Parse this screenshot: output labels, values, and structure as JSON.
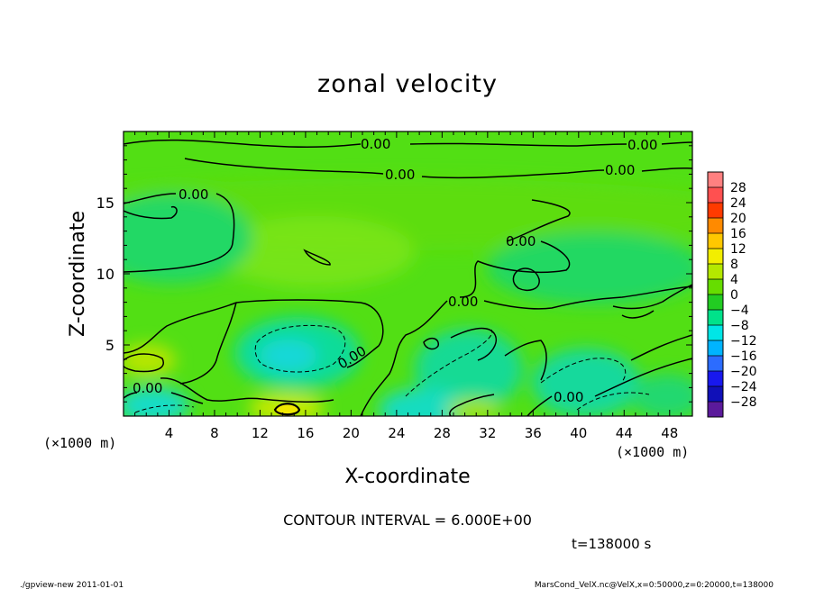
{
  "chart_data": {
    "type": "contour",
    "title": "zonal velocity",
    "xlabel": "X-coordinate",
    "ylabel": "Z-coordinate",
    "x_unit": "(×1000 m)",
    "y_unit": "(×1000 m)",
    "xlim": [
      0,
      50
    ],
    "ylim": [
      0,
      20
    ],
    "x_ticks": [
      "4",
      "8",
      "12",
      "16",
      "20",
      "24",
      "28",
      "32",
      "36",
      "40",
      "44",
      "48"
    ],
    "y_ticks": [
      "5",
      "10",
      "15"
    ],
    "contour_interval_text": "CONTOUR INTERVAL = 6.000E+00",
    "contour_labels": [
      "0.00",
      "0.00",
      "0.00",
      "0.00",
      "0.00",
      "0.00",
      "0.00",
      "0.00",
      "0.00",
      "0.00"
    ],
    "colorbar": {
      "labels": [
        "28",
        "24",
        "20",
        "16",
        "12",
        "8",
        "4",
        "0",
        "−4",
        "−8",
        "−12",
        "−16",
        "−20",
        "−24",
        "−28"
      ],
      "colors": [
        "#ff8080",
        "#ff5050",
        "#ff3a00",
        "#ff8a00",
        "#ffc800",
        "#f2ee00",
        "#b4e800",
        "#66dd00",
        "#22cc22",
        "#00e28a",
        "#00e6e6",
        "#00b4ff",
        "#2c6cff",
        "#1818ee",
        "#1010b8",
        "#5b1a9b"
      ]
    },
    "time_label": "t=138000 s"
  },
  "footer": {
    "left": "./gpview-new  2011-01-01",
    "right": "MarsCond_VelX.nc@VelX,x=0:50000,z=0:20000,t=138000"
  }
}
